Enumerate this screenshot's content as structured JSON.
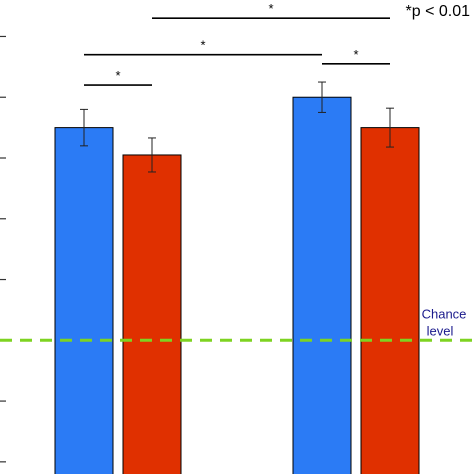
{
  "chart_data": {
    "type": "bar",
    "categories": [
      "",
      ""
    ],
    "series": [
      {
        "color": "#2b7bf5",
        "values": [
          0.75,
          0.8
        ],
        "errors": [
          0.03,
          0.025
        ]
      },
      {
        "color": "#e03000",
        "values": [
          0.705,
          0.75
        ],
        "errors": [
          0.028,
          0.032
        ]
      }
    ],
    "ylim": [
      0.18,
      0.96
    ],
    "y_ticks": [
      0.2,
      0.3,
      0.4,
      0.5,
      0.6,
      0.7,
      0.8,
      0.9
    ],
    "chance": {
      "value": 0.4,
      "label_line1": "Chance",
      "label_line2": "level",
      "line_color": "#7ed321",
      "text_color": "#1a1a8c"
    },
    "significance": [
      {
        "from": [
          0,
          0
        ],
        "to": [
          0,
          1
        ],
        "y": 0.82,
        "label": "*"
      },
      {
        "from": [
          0,
          0
        ],
        "to": [
          1,
          0
        ],
        "y": 0.87,
        "label": "*"
      },
      {
        "from": [
          0,
          1
        ],
        "to": [
          1,
          1
        ],
        "y": 0.93,
        "label": "*"
      },
      {
        "from": [
          1,
          0
        ],
        "to": [
          1,
          1
        ],
        "y": 0.855,
        "label": "*"
      }
    ],
    "note": "*p < 0.01",
    "xlabel": "",
    "ylabel": ""
  }
}
